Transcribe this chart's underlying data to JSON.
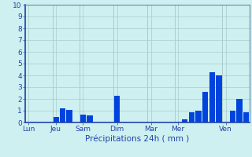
{
  "xlabel": "Précipitations 24h ( mm )",
  "background_color": "#cef0f0",
  "bar_color": "#0044dd",
  "ylim": [
    0,
    10
  ],
  "yticks": [
    0,
    1,
    2,
    3,
    4,
    5,
    6,
    7,
    8,
    9,
    10
  ],
  "day_labels": [
    "Lun",
    "Jeu",
    "Sam",
    "Dim",
    "Mar",
    "Mer",
    "Ven"
  ],
  "day_positions": [
    0,
    4,
    8,
    13,
    18,
    22,
    29
  ],
  "n_bars": 33,
  "values": [
    0,
    0,
    0,
    0,
    0.5,
    1.2,
    1.1,
    0,
    0.7,
    0.6,
    0,
    0,
    0,
    2.3,
    0,
    0,
    0,
    0,
    0,
    0,
    0,
    0,
    0,
    0.3,
    0.9,
    1.0,
    2.6,
    4.3,
    4.0,
    0,
    1.0,
    2.0,
    0.9
  ],
  "grid_color": "#aacccc",
  "spine_color": "#6688aa",
  "tick_color": "#2244aa",
  "ytick_fontsize": 6.5,
  "xtick_fontsize": 6.5,
  "xlabel_fontsize": 7.5
}
